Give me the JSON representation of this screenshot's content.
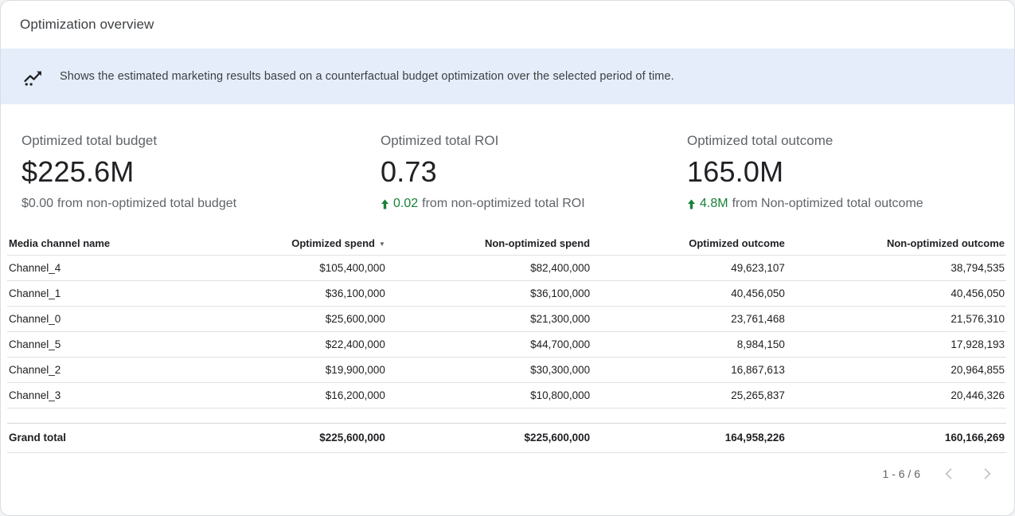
{
  "header": {
    "title": "Optimization overview"
  },
  "banner": {
    "icon": "insights-icon",
    "text": "Shows the estimated marketing results based on a counterfactual budget optimization over the selected period of time.",
    "background_color": "#e5edfa"
  },
  "kpis": [
    {
      "label": "Optimized total budget",
      "value": "$225.6M",
      "delta": "$0.00",
      "delta_suffix": "from non-optimized total budget",
      "delta_positive": false
    },
    {
      "label": "Optimized total ROI",
      "value": "0.73",
      "delta": "0.02",
      "delta_suffix": "from non-optimized total ROI",
      "delta_positive": true
    },
    {
      "label": "Optimized total outcome",
      "value": "165.0M",
      "delta": "4.8M",
      "delta_suffix": "from Non-optimized total outcome",
      "delta_positive": true
    }
  ],
  "colors": {
    "positive_green": "#188038",
    "text_dark": "#202124",
    "text_gray": "#5f6368"
  },
  "table": {
    "columns": [
      "Media channel name",
      "Optimized spend",
      "Non-optimized spend",
      "Optimized outcome",
      "Non-optimized outcome"
    ],
    "sort_column": "Optimized spend",
    "sort_direction": "desc",
    "sort_indicator": "▼",
    "rows": [
      [
        "Channel_4",
        "$105,400,000",
        "$82,400,000",
        "49,623,107",
        "38,794,535"
      ],
      [
        "Channel_1",
        "$36,100,000",
        "$36,100,000",
        "40,456,050",
        "40,456,050"
      ],
      [
        "Channel_0",
        "$25,600,000",
        "$21,300,000",
        "23,761,468",
        "21,576,310"
      ],
      [
        "Channel_5",
        "$22,400,000",
        "$44,700,000",
        "8,984,150",
        "17,928,193"
      ],
      [
        "Channel_2",
        "$19,900,000",
        "$30,300,000",
        "16,867,613",
        "20,964,855"
      ],
      [
        "Channel_3",
        "$16,200,000",
        "$10,800,000",
        "25,265,837",
        "20,446,326"
      ]
    ],
    "grand_total": [
      "Grand total",
      "$225,600,000",
      "$225,600,000",
      "164,958,226",
      "160,166,269"
    ]
  },
  "pagination": {
    "label": "1 - 6 / 6"
  }
}
